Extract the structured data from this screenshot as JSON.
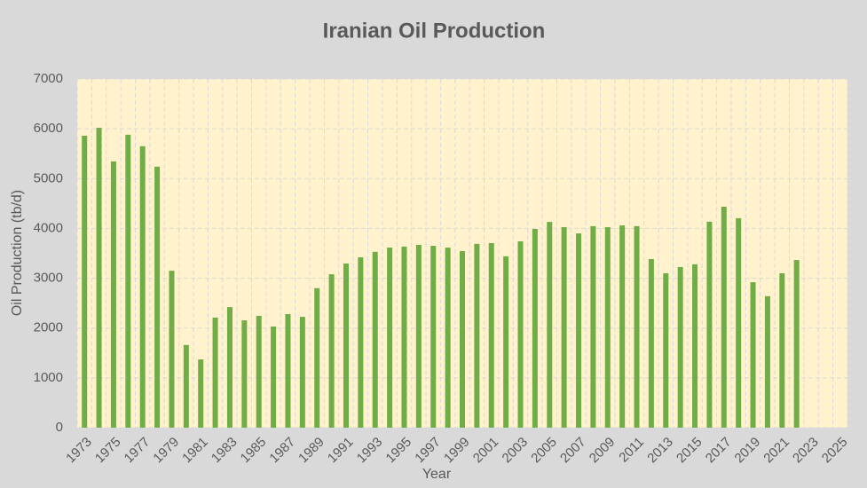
{
  "chart_data": {
    "type": "bar",
    "title": "Iranian Oil Production",
    "x_label": "Year",
    "y_label": "Oil Production (tb/d)",
    "categories": [
      "1973",
      null,
      "1975",
      null,
      "1977",
      null,
      "1979",
      null,
      "1981",
      null,
      "1983",
      null,
      "1985",
      null,
      "1987",
      null,
      "1989",
      null,
      "1991",
      null,
      "1993",
      null,
      "1995",
      null,
      "1997",
      null,
      "1999",
      null,
      "2001",
      null,
      "2003",
      null,
      "2005",
      null,
      "2007",
      null,
      "2009",
      null,
      "2011",
      null,
      "2013",
      null,
      "2015",
      null,
      "2017",
      null,
      "2019",
      null,
      "2021",
      null,
      "2023",
      null,
      "2025"
    ],
    "values": [
      5860,
      6020,
      5345,
      5880,
      5650,
      5240,
      3150,
      1660,
      1370,
      2210,
      2420,
      2155,
      2245,
      2030,
      2280,
      2225,
      2800,
      3080,
      3295,
      3420,
      3530,
      3615,
      3635,
      3670,
      3650,
      3615,
      3545,
      3690,
      3705,
      3440,
      3740,
      3990,
      4130,
      4025,
      3900,
      4045,
      4025,
      4060,
      4045,
      3385,
      3100,
      3225,
      3280,
      4135,
      4435,
      4205,
      2920,
      2640,
      3100,
      3365,
      null,
      null,
      null
    ],
    "color": "#70ad47",
    "ylim": [
      0,
      7000
    ],
    "yticks": [
      0,
      1000,
      2000,
      3000,
      4000,
      5000,
      6000,
      7000
    ],
    "grid": true
  }
}
